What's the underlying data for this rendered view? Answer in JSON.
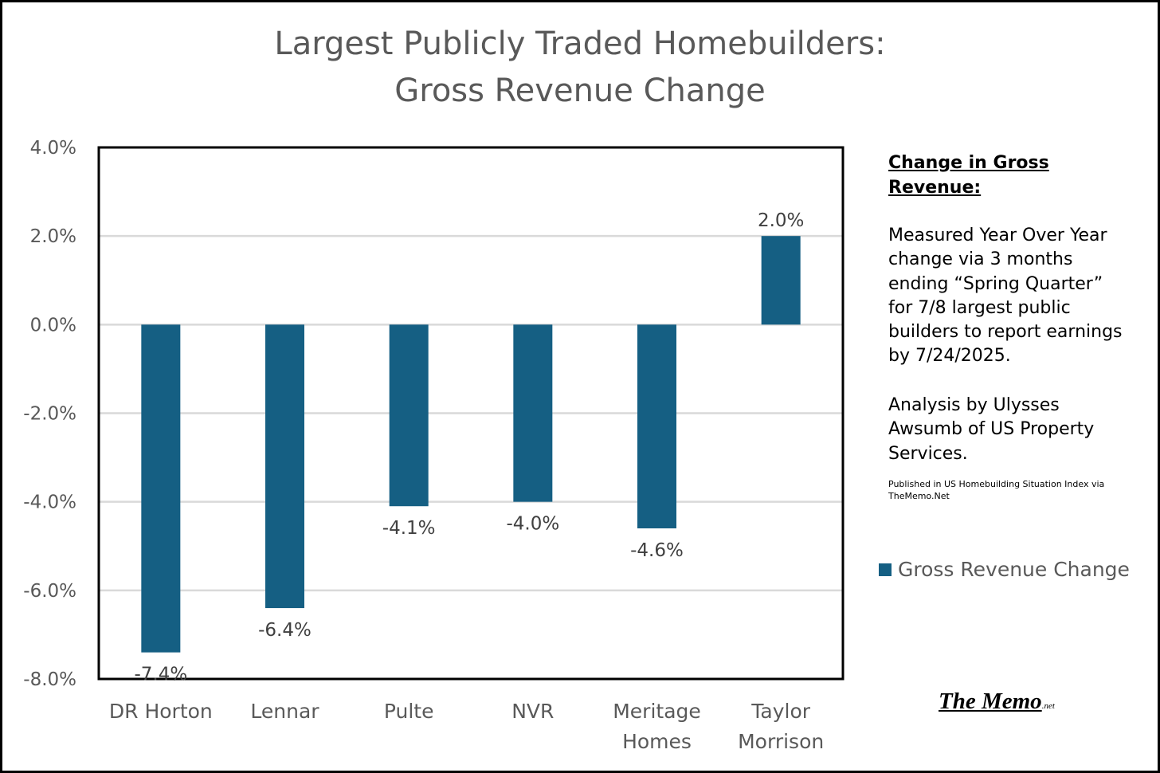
{
  "chart_data": {
    "type": "bar",
    "title_lines": [
      "Largest Publicly Traded Homebuilders:",
      "Gross Revenue Change"
    ],
    "categories": [
      [
        "DR Horton"
      ],
      [
        "Lennar"
      ],
      [
        "Pulte"
      ],
      [
        "NVR"
      ],
      [
        "Meritage",
        "Homes"
      ],
      [
        "Taylor",
        "Morrison"
      ]
    ],
    "series": [
      {
        "name": "Gross Revenue Change",
        "values": [
          -7.4,
          -6.4,
          -4.1,
          -4.0,
          -4.6,
          2.0
        ],
        "labels": [
          "-7.4%",
          "-6.4%",
          "-4.1%",
          "-4.0%",
          "-4.6%",
          "2.0%"
        ]
      }
    ],
    "ylim": [
      -8.0,
      4.0
    ],
    "yticks": [
      4.0,
      2.0,
      0.0,
      -2.0,
      -4.0,
      -6.0,
      -8.0
    ],
    "ytick_labels": [
      "4.0%",
      "2.0%",
      "0.0%",
      "-2.0%",
      "-4.0%",
      "-6.0%",
      "-8.0%"
    ],
    "grid": true,
    "legend_position": "right",
    "xlabel": "",
    "ylabel": ""
  },
  "colors": {
    "bar": "#155f83",
    "gridline": "#d9d9d9",
    "axis_text": "#595959",
    "label_text": "#404040"
  },
  "notes": {
    "heading": "Change in Gross Revenue:",
    "body": "Measured Year Over Year change via 3 months ending “Spring Quarter” for 7/8 largest public builders to report earnings by 7/24/2025.",
    "credit": "Analysis by Ulysses Awsumb of US Property Services.",
    "published": "Published in US Homebuilding Situation Index via TheMemo.Net"
  },
  "legend": {
    "label": "Gross Revenue Change"
  },
  "brand": {
    "name": "The Memo",
    "suffix": ".net"
  }
}
